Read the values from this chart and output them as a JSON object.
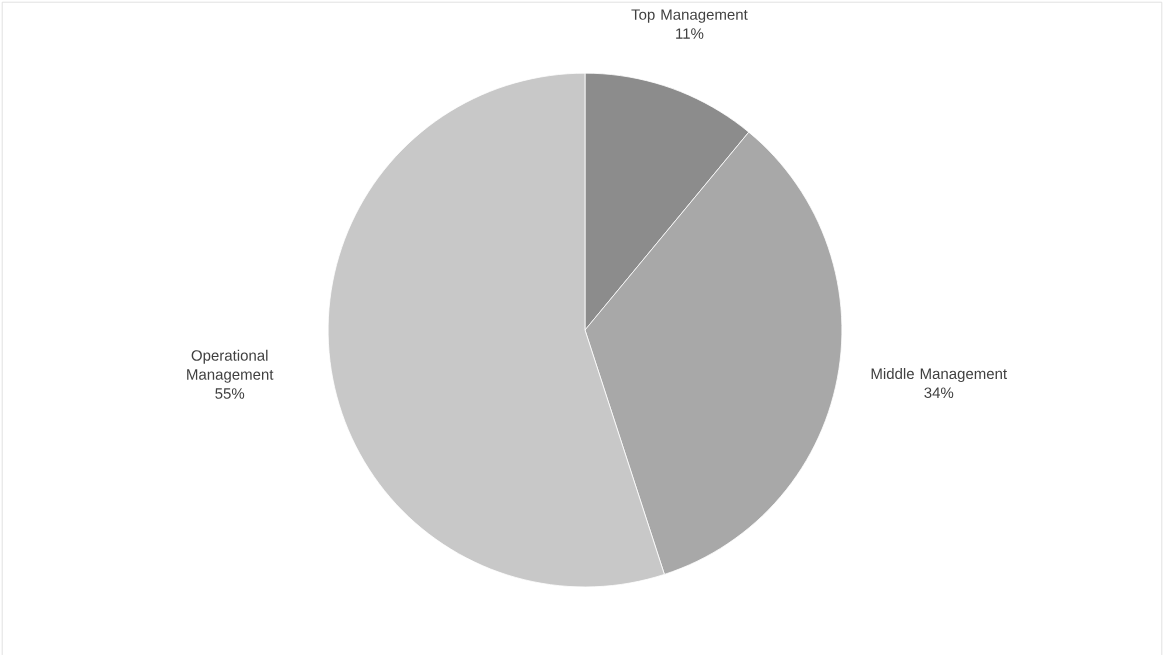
{
  "chart_data": {
    "type": "pie",
    "categories": [
      "Top Management",
      "Middle Management",
      "Operational Management"
    ],
    "values": [
      11,
      34,
      55
    ],
    "value_labels": [
      "11%",
      "34%",
      "55%"
    ],
    "colors": [
      "#8c8c8c",
      "#a8a8a8",
      "#c8c8c8"
    ]
  }
}
